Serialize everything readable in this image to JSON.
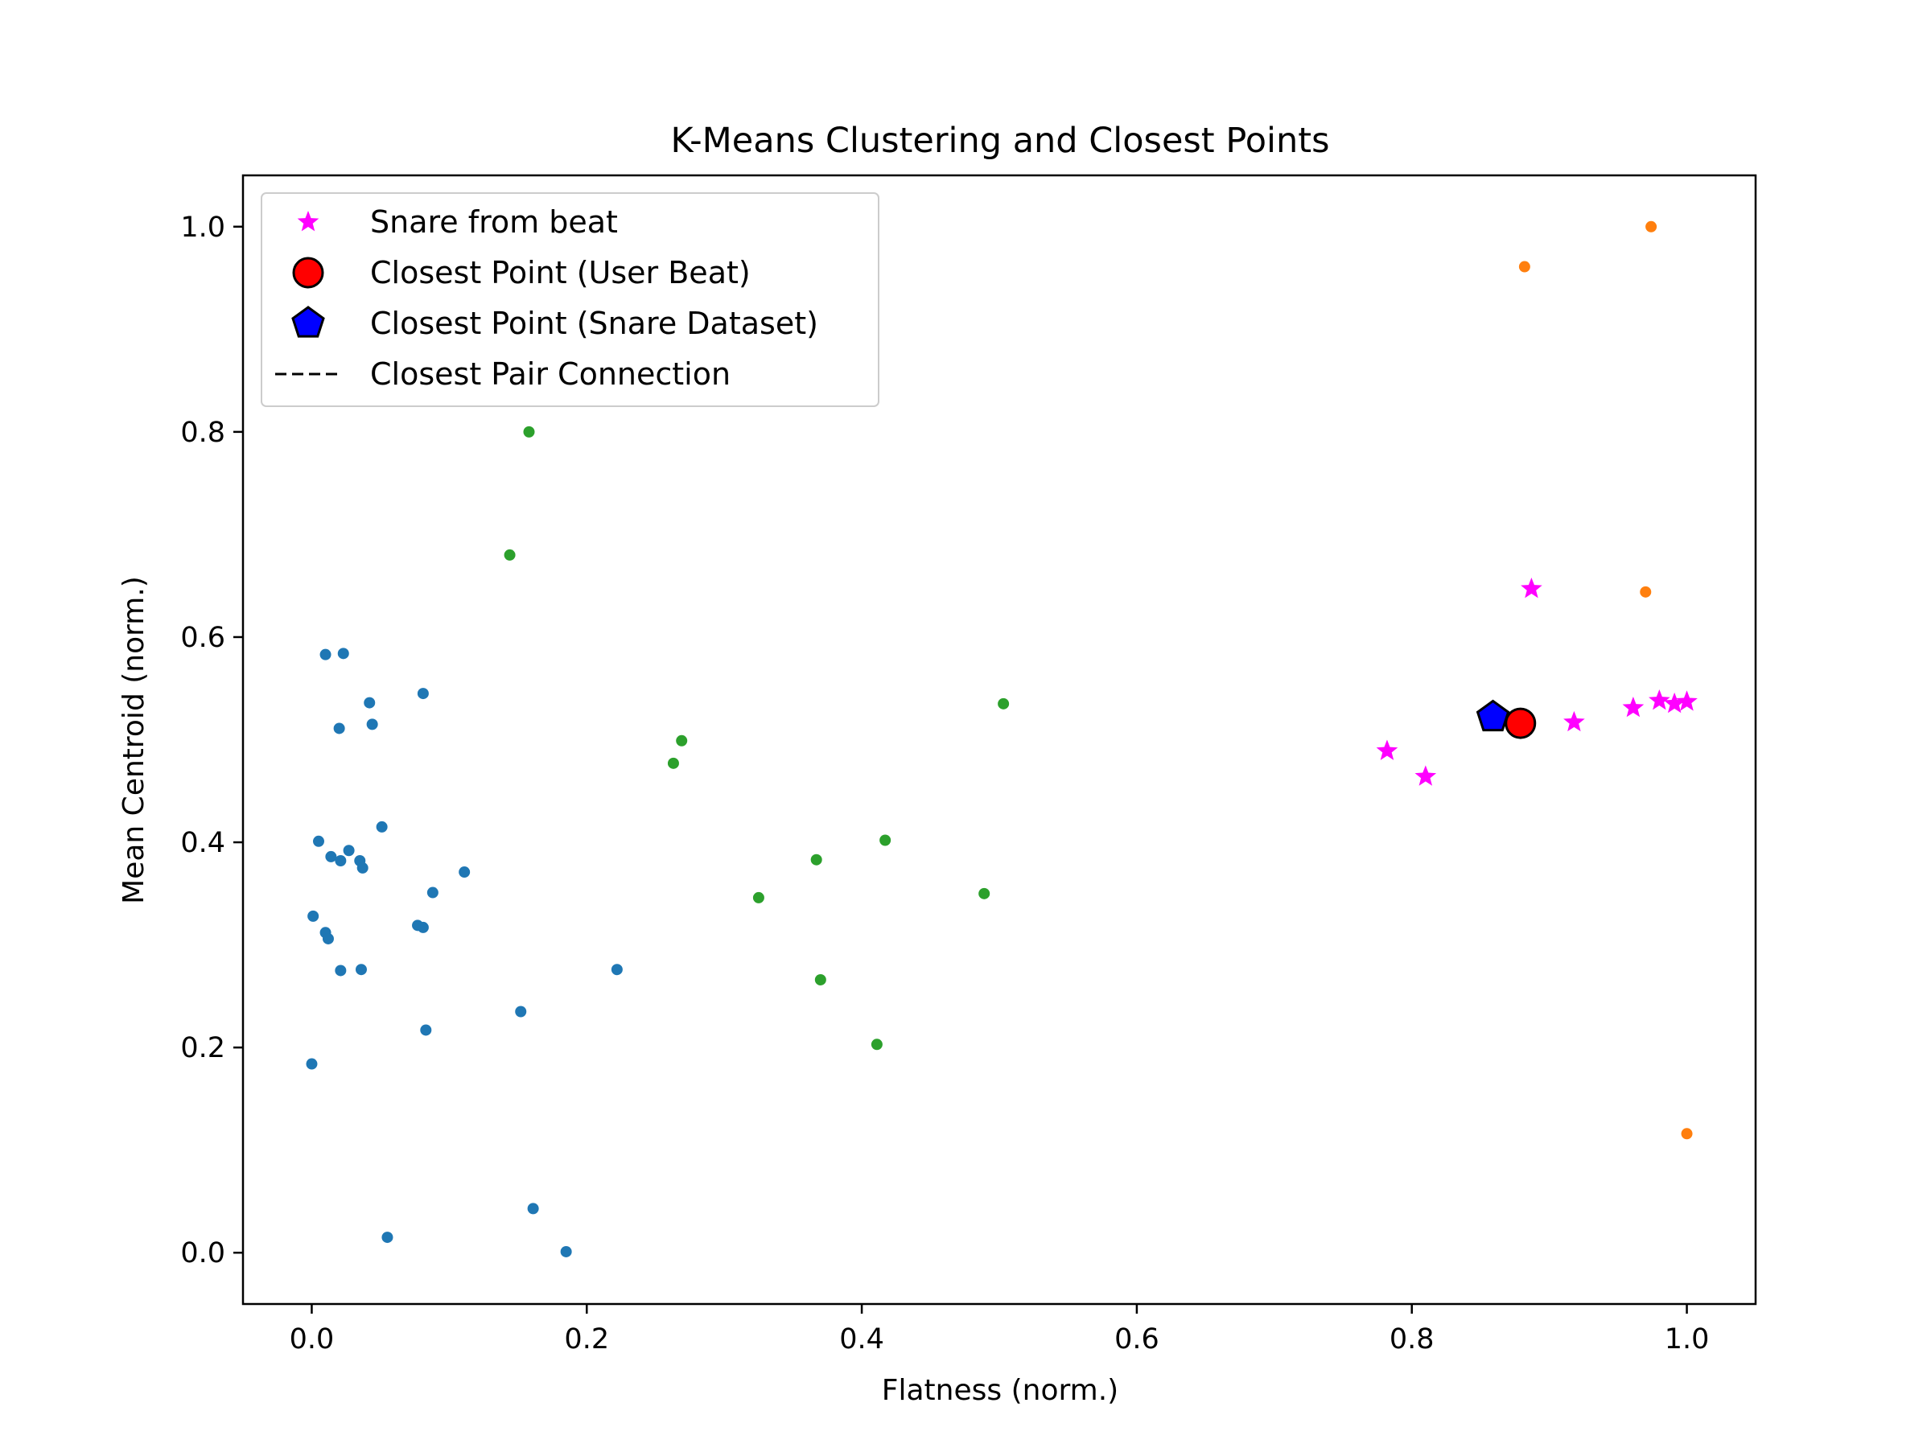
{
  "chart_data": {
    "type": "scatter",
    "title": "K-Means Clustering and Closest Points",
    "xlabel": "Flatness (norm.)",
    "ylabel": "Mean Centroid (norm.)",
    "xlim": [
      -0.05,
      1.05
    ],
    "ylim": [
      -0.05,
      1.05
    ],
    "xticks": [
      0.0,
      0.2,
      0.4,
      0.6,
      0.8,
      1.0
    ],
    "yticks": [
      0.0,
      0.2,
      0.4,
      0.6,
      0.8,
      1.0
    ],
    "xtick_labels": [
      "0.0",
      "0.2",
      "0.4",
      "0.6",
      "0.8",
      "1.0"
    ],
    "ytick_labels": [
      "0.0",
      "0.2",
      "0.4",
      "0.6",
      "0.8",
      "1.0"
    ],
    "grid": false,
    "legend_position": "top-left",
    "clusters": [
      {
        "color": "#1f77b4",
        "points": [
          [
            0.01,
            0.583
          ],
          [
            0.023,
            0.584
          ],
          [
            0.042,
            0.536
          ],
          [
            0.044,
            0.515
          ],
          [
            0.02,
            0.511
          ],
          [
            0.081,
            0.545
          ],
          [
            0.005,
            0.401
          ],
          [
            0.014,
            0.386
          ],
          [
            0.021,
            0.382
          ],
          [
            0.027,
            0.392
          ],
          [
            0.035,
            0.382
          ],
          [
            0.037,
            0.375
          ],
          [
            0.051,
            0.415
          ],
          [
            0.111,
            0.371
          ],
          [
            0.088,
            0.351
          ],
          [
            0.001,
            0.328
          ],
          [
            0.01,
            0.312
          ],
          [
            0.012,
            0.306
          ],
          [
            0.077,
            0.319
          ],
          [
            0.081,
            0.317
          ],
          [
            0.021,
            0.275
          ],
          [
            0.036,
            0.276
          ],
          [
            0.083,
            0.217
          ],
          [
            0.152,
            0.235
          ],
          [
            0.222,
            0.276
          ],
          [
            0.0,
            0.184
          ],
          [
            0.161,
            0.043
          ],
          [
            0.055,
            0.015
          ],
          [
            0.185,
            0.001
          ]
        ]
      },
      {
        "color": "#ff7f0e",
        "points": [
          [
            0.974,
            1.0
          ],
          [
            0.882,
            0.961
          ],
          [
            0.97,
            0.644
          ],
          [
            1.0,
            0.116
          ]
        ]
      },
      {
        "color": "#2ca02c",
        "points": [
          [
            0.158,
            0.8
          ],
          [
            0.144,
            0.68
          ],
          [
            0.269,
            0.499
          ],
          [
            0.263,
            0.477
          ],
          [
            0.503,
            0.535
          ],
          [
            0.417,
            0.402
          ],
          [
            0.367,
            0.383
          ],
          [
            0.325,
            0.346
          ],
          [
            0.489,
            0.35
          ],
          [
            0.37,
            0.266
          ],
          [
            0.411,
            0.203
          ]
        ]
      }
    ],
    "series": [
      {
        "name": "Snare from beat",
        "marker": "star",
        "color": "#ff00ff",
        "points": [
          [
            0.887,
            0.647
          ],
          [
            0.782,
            0.489
          ],
          [
            0.81,
            0.464
          ],
          [
            0.918,
            0.517
          ],
          [
            0.961,
            0.531
          ],
          [
            0.98,
            0.538
          ],
          [
            0.991,
            0.535
          ],
          [
            1.0,
            0.537
          ]
        ]
      },
      {
        "name": "Closest Point (User Beat)",
        "marker": "circle",
        "color": "#ff0000",
        "points": [
          [
            0.879,
            0.516
          ]
        ]
      },
      {
        "name": "Closest Point (Snare Dataset)",
        "marker": "pentagon",
        "color": "#0000ff",
        "points": [
          [
            0.859,
            0.522
          ]
        ]
      },
      {
        "name": "Closest Pair Connection",
        "marker": "dashed-line",
        "color": "#000000",
        "points": [
          [
            0.879,
            0.516
          ],
          [
            0.859,
            0.522
          ]
        ]
      }
    ]
  }
}
